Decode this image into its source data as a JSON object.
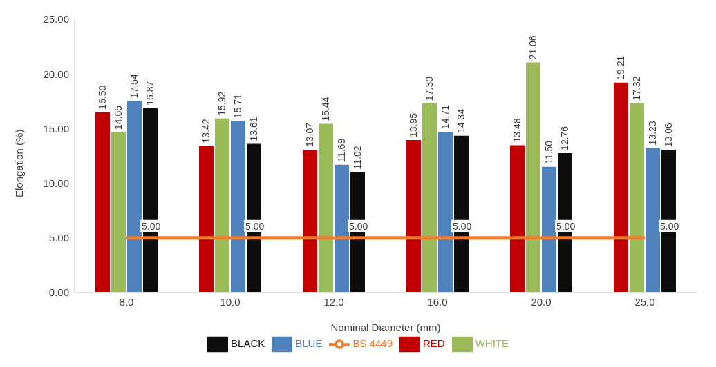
{
  "chart_data": {
    "type": "bar",
    "xlabel": "Nominal Diameter (mm)",
    "ylabel": "Elongation (%)",
    "categories": [
      "8.0",
      "10.0",
      "12.0",
      "16.0",
      "20.0",
      "25.0"
    ],
    "series": [
      {
        "name": "RED",
        "color": "#c00000",
        "values": [
          16.5,
          13.42,
          13.07,
          13.95,
          13.48,
          19.21
        ],
        "value_labels": [
          "16.50",
          "13.42",
          "13.07",
          "13.95",
          "13.48",
          "19.21"
        ]
      },
      {
        "name": "WHITE",
        "color": "#9bbb59",
        "values": [
          14.65,
          15.92,
          15.44,
          17.3,
          21.06,
          17.32
        ],
        "value_labels": [
          "14.65",
          "15.92",
          "15.44",
          "17.30",
          "21.06",
          "17.32"
        ]
      },
      {
        "name": "BLUE",
        "color": "#4f81bd",
        "values": [
          17.54,
          15.71,
          11.69,
          14.71,
          11.5,
          13.23
        ],
        "value_labels": [
          "17.54",
          "15.71",
          "11.69",
          "14.71",
          "11.50",
          "13.23"
        ]
      },
      {
        "name": "BLACK",
        "color": "#0d0d0d",
        "values": [
          16.87,
          13.61,
          11.02,
          14.34,
          12.76,
          13.06
        ],
        "value_labels": [
          "16.87",
          "13.61",
          "11.02",
          "14.34",
          "12.76",
          "13.06"
        ]
      },
      {
        "name": "BS 4449",
        "type": "line",
        "color": "#ed7d31",
        "values": [
          5,
          5,
          5,
          5,
          5,
          5
        ],
        "value_labels": [
          "5.00",
          "5.00",
          "5.00",
          "5.00",
          "5.00",
          "5.00"
        ]
      }
    ],
    "ylim": [
      0,
      25
    ],
    "yticks": [
      {
        "value": 0,
        "label": "0.00"
      },
      {
        "value": 5,
        "label": "5.00"
      },
      {
        "value": 10,
        "label": "10.00"
      },
      {
        "value": 15,
        "label": "15.00"
      },
      {
        "value": 20,
        "label": "20.00"
      },
      {
        "value": 25,
        "label": "25.00"
      }
    ],
    "legend": "bottom",
    "marker": "none",
    "line_style": "solid"
  }
}
